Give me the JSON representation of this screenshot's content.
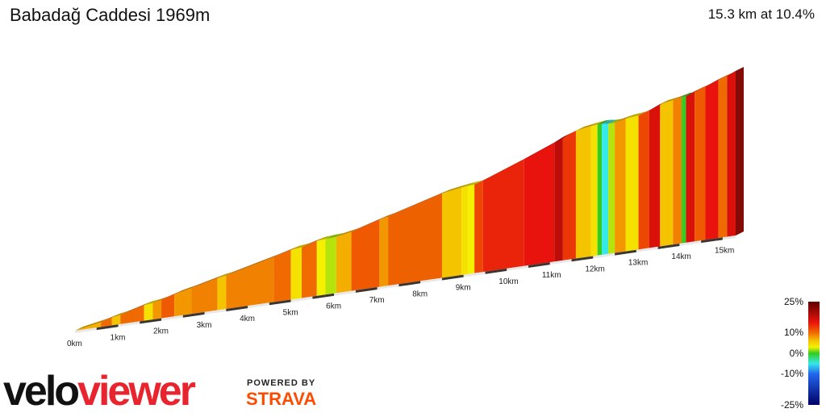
{
  "header": {
    "title": "Babadağ Caddesi 1969m",
    "summary": "15.3 km at 10.4%"
  },
  "legend": {
    "labels": [
      "25%",
      "10%",
      "0%",
      "-10%",
      "-25%"
    ],
    "label_values": [
      25,
      10,
      0,
      -10,
      -25
    ],
    "min": -25,
    "max": 25
  },
  "branding": {
    "logo_text": "veloviewer",
    "powered_by": "POWERED BY",
    "partner": "STRAVA",
    "colors": {
      "velo": "#111111",
      "viewer": "#e8242f",
      "strava": "#fc4c02"
    }
  },
  "chart_data": {
    "type": "area",
    "x_unit": "km",
    "xlim": [
      0,
      15.3
    ],
    "tick_labels": [
      "0km",
      "1km",
      "2km",
      "3km",
      "4km",
      "5km",
      "6km",
      "7km",
      "8km",
      "9km",
      "10km",
      "11km",
      "12km",
      "13km",
      "14km",
      "15km"
    ],
    "tick_values": [
      0,
      1,
      2,
      3,
      4,
      5,
      6,
      7,
      8,
      9,
      10,
      11,
      12,
      13,
      14,
      15
    ],
    "gradient_scale": {
      "stops": [
        {
          "pct": 25,
          "color": "#5c0000"
        },
        {
          "pct": 15,
          "color": "#e8130c"
        },
        {
          "pct": 10,
          "color": "#ef6a00"
        },
        {
          "pct": 6,
          "color": "#f5c400"
        },
        {
          "pct": 3,
          "color": "#f4f000"
        },
        {
          "pct": 0,
          "color": "#33cc22"
        },
        {
          "pct": -5,
          "color": "#36e8e8"
        },
        {
          "pct": -10,
          "color": "#2266ee"
        },
        {
          "pct": -25,
          "color": "#000066"
        }
      ]
    },
    "segments": [
      {
        "x0": 0.0,
        "x1": 0.6,
        "grad": 7
      },
      {
        "x0": 0.6,
        "x1": 0.85,
        "grad": 10
      },
      {
        "x0": 0.85,
        "x1": 1.05,
        "grad": 6
      },
      {
        "x0": 1.05,
        "x1": 1.6,
        "grad": 10
      },
      {
        "x0": 1.6,
        "x1": 1.8,
        "grad": 4
      },
      {
        "x0": 1.8,
        "x1": 2.0,
        "grad": 8
      },
      {
        "x0": 2.0,
        "x1": 2.3,
        "grad": 11
      },
      {
        "x0": 2.3,
        "x1": 2.7,
        "grad": 8
      },
      {
        "x0": 2.7,
        "x1": 3.3,
        "grad": 9
      },
      {
        "x0": 3.3,
        "x1": 3.5,
        "grad": 6
      },
      {
        "x0": 3.5,
        "x1": 4.6,
        "grad": 9
      },
      {
        "x0": 4.6,
        "x1": 5.0,
        "grad": 10
      },
      {
        "x0": 5.0,
        "x1": 5.25,
        "grad": 4
      },
      {
        "x0": 5.25,
        "x1": 5.6,
        "grad": 10
      },
      {
        "x0": 5.6,
        "x1": 5.8,
        "grad": 3
      },
      {
        "x0": 5.8,
        "x1": 6.05,
        "grad": 2
      },
      {
        "x0": 6.05,
        "x1": 6.4,
        "grad": 7
      },
      {
        "x0": 6.4,
        "x1": 7.05,
        "grad": 11
      },
      {
        "x0": 7.05,
        "x1": 7.25,
        "grad": 8
      },
      {
        "x0": 7.25,
        "x1": 8.5,
        "grad": 10.5
      },
      {
        "x0": 8.5,
        "x1": 8.95,
        "grad": 6
      },
      {
        "x0": 8.95,
        "x1": 9.1,
        "grad": 4
      },
      {
        "x0": 9.1,
        "x1": 9.25,
        "grad": 3
      },
      {
        "x0": 9.25,
        "x1": 9.45,
        "grad": 12
      },
      {
        "x0": 9.45,
        "x1": 10.4,
        "grad": 14
      },
      {
        "x0": 10.4,
        "x1": 11.1,
        "grad": 15
      },
      {
        "x0": 11.1,
        "x1": 11.3,
        "grad": 18
      },
      {
        "x0": 11.3,
        "x1": 11.6,
        "grad": 13
      },
      {
        "x0": 11.6,
        "x1": 11.95,
        "grad": 6
      },
      {
        "x0": 11.95,
        "x1": 12.1,
        "grad": 4
      },
      {
        "x0": 12.1,
        "x1": 12.2,
        "grad": 0
      },
      {
        "x0": 12.2,
        "x1": 12.35,
        "grad": -5
      },
      {
        "x0": 12.35,
        "x1": 12.5,
        "grad": 2
      },
      {
        "x0": 12.5,
        "x1": 12.75,
        "grad": 8
      },
      {
        "x0": 12.75,
        "x1": 13.05,
        "grad": 4
      },
      {
        "x0": 13.05,
        "x1": 13.3,
        "grad": 12
      },
      {
        "x0": 13.3,
        "x1": 13.55,
        "grad": 16
      },
      {
        "x0": 13.55,
        "x1": 13.85,
        "grad": 6
      },
      {
        "x0": 13.85,
        "x1": 14.05,
        "grad": 9
      },
      {
        "x0": 14.05,
        "x1": 14.15,
        "grad": 0
      },
      {
        "x0": 14.15,
        "x1": 14.35,
        "grad": 16
      },
      {
        "x0": 14.35,
        "x1": 14.6,
        "grad": 11
      },
      {
        "x0": 14.6,
        "x1": 14.9,
        "grad": 15
      },
      {
        "x0": 14.9,
        "x1": 15.1,
        "grad": 10
      },
      {
        "x0": 15.1,
        "x1": 15.3,
        "grad": 16
      }
    ]
  }
}
